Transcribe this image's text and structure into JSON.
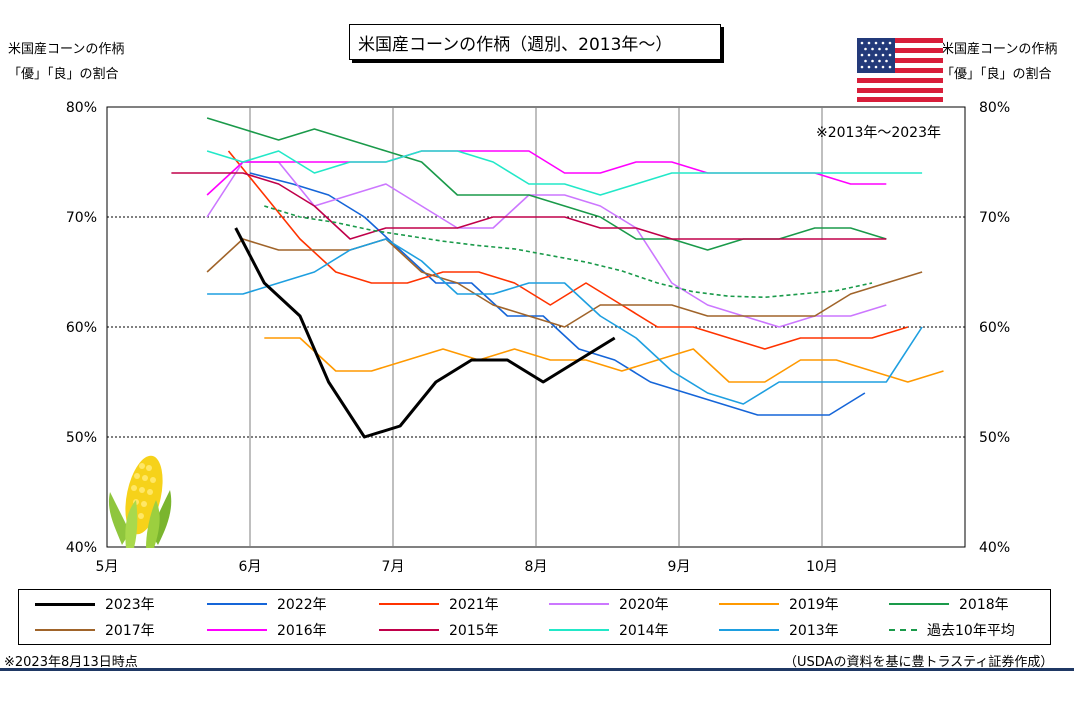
{
  "header": {
    "title": "米国産コーンの作柄（週別、2013年～）",
    "left_axis_label": [
      "米国産コーンの作柄",
      "「優」「良」の割合"
    ],
    "right_axis_label": [
      "米国産コーンの作柄",
      "「優」「良」の割合"
    ],
    "period_note": "※2013年～2023年"
  },
  "footer": {
    "date_note": "※2023年8月13日時点",
    "source": "（USDAの資料を基に豊トラスティ証券作成）"
  },
  "icons": [
    "us-flag-icon",
    "corn-icon"
  ],
  "chart_data": {
    "type": "line",
    "x_unit": "week (month boundaries)",
    "x_ticks": [
      "5月",
      "6月",
      "7月",
      "8月",
      "9月",
      "10月"
    ],
    "y_ticks": [
      "40%",
      "50%",
      "60%",
      "70%",
      "80%"
    ],
    "ylim": [
      40,
      80
    ],
    "grid": "horizontal dotted at 50/60/70, vertical at month boundaries",
    "series": [
      {
        "name": "2023年",
        "color": "#000000",
        "width": 3,
        "dash": "",
        "x": [
          5.9,
          6.1,
          6.35,
          6.55,
          6.8,
          7.05,
          7.3,
          7.55,
          7.8,
          8.05,
          8.3,
          8.55
        ],
        "values": [
          69,
          64,
          61,
          55,
          50,
          51,
          55,
          57,
          57,
          55,
          57,
          59
        ]
      },
      {
        "name": "2022年",
        "color": "#1565d8",
        "width": 1.6,
        "dash": "",
        "x": [
          6.0,
          6.3,
          6.55,
          6.8,
          7.05,
          7.3,
          7.55,
          7.8,
          8.05,
          8.3,
          8.55,
          8.8,
          9.05,
          9.3,
          9.55,
          9.8,
          10.05,
          10.3
        ],
        "values": [
          74,
          73,
          72,
          70,
          67,
          64,
          64,
          61,
          61,
          58,
          57,
          55,
          54,
          53,
          52,
          52,
          52,
          54
        ]
      },
      {
        "name": "2021年",
        "color": "#ff3300",
        "width": 1.6,
        "dash": "",
        "x": [
          5.85,
          6.1,
          6.35,
          6.6,
          6.85,
          7.1,
          7.35,
          7.6,
          7.85,
          8.1,
          8.35,
          8.6,
          8.85,
          9.1,
          9.35,
          9.6,
          9.85,
          10.1,
          10.35,
          10.6
        ],
        "values": [
          76,
          72,
          68,
          65,
          64,
          64,
          65,
          65,
          64,
          62,
          64,
          62,
          60,
          60,
          59,
          58,
          59,
          59,
          59,
          60
        ]
      },
      {
        "name": "2020年",
        "color": "#cc77ff",
        "width": 1.6,
        "dash": "",
        "x": [
          5.7,
          5.95,
          6.2,
          6.45,
          6.7,
          6.95,
          7.2,
          7.45,
          7.7,
          7.95,
          8.2,
          8.45,
          8.7,
          8.95,
          9.2,
          9.45,
          9.7,
          9.95,
          10.2,
          10.45
        ],
        "values": [
          70,
          75,
          75,
          71,
          72,
          73,
          71,
          69,
          69,
          72,
          72,
          71,
          69,
          64,
          62,
          61,
          60,
          61,
          61,
          62
        ]
      },
      {
        "name": "2019年",
        "color": "#ff9900",
        "width": 1.6,
        "dash": "",
        "x": [
          6.1,
          6.35,
          6.6,
          6.85,
          7.1,
          7.35,
          7.6,
          7.85,
          8.1,
          8.35,
          8.6,
          8.85,
          9.1,
          9.35,
          9.6,
          9.85,
          10.1,
          10.35,
          10.6,
          10.85
        ],
        "values": [
          59,
          59,
          56,
          56,
          57,
          58,
          57,
          58,
          57,
          57,
          56,
          57,
          58,
          55,
          55,
          57,
          57,
          56,
          55,
          56
        ]
      },
      {
        "name": "2018年",
        "color": "#1a9a4a",
        "width": 1.6,
        "dash": "",
        "x": [
          5.7,
          5.95,
          6.2,
          6.45,
          6.7,
          6.95,
          7.2,
          7.45,
          7.7,
          7.95,
          8.2,
          8.45,
          8.7,
          8.95,
          9.2,
          9.45,
          9.7,
          9.95,
          10.2,
          10.45
        ],
        "values": [
          79,
          78,
          77,
          78,
          77,
          76,
          75,
          72,
          72,
          72,
          71,
          70,
          68,
          68,
          67,
          68,
          68,
          69,
          69,
          68
        ]
      },
      {
        "name": "2017年",
        "color": "#a0642a",
        "width": 1.6,
        "dash": "",
        "x": [
          5.7,
          5.95,
          6.2,
          6.45,
          6.7,
          6.95,
          7.2,
          7.45,
          7.7,
          7.95,
          8.2,
          8.45,
          8.7,
          8.95,
          9.2,
          9.45,
          9.7,
          9.95,
          10.2,
          10.45,
          10.7
        ],
        "values": [
          65,
          68,
          67,
          67,
          67,
          68,
          65,
          64,
          62,
          61,
          60,
          62,
          62,
          62,
          61,
          61,
          61,
          61,
          63,
          64,
          65
        ]
      },
      {
        "name": "2016年",
        "color": "#ff00ff",
        "width": 1.6,
        "dash": "",
        "x": [
          5.7,
          5.95,
          6.2,
          6.45,
          6.7,
          6.95,
          7.2,
          7.45,
          7.7,
          7.95,
          8.2,
          8.45,
          8.7,
          8.95,
          9.2,
          9.45,
          9.7,
          9.95,
          10.2,
          10.45
        ],
        "values": [
          72,
          75,
          75,
          75,
          75,
          75,
          76,
          76,
          76,
          76,
          74,
          74,
          75,
          75,
          74,
          74,
          74,
          74,
          73,
          73
        ]
      },
      {
        "name": "2015年",
        "color": "#c0004a",
        "width": 1.6,
        "dash": "",
        "x": [
          5.45,
          5.7,
          5.95,
          6.2,
          6.45,
          6.7,
          6.95,
          7.2,
          7.45,
          7.7,
          7.95,
          8.2,
          8.45,
          8.7,
          8.95,
          9.2,
          9.45,
          9.7,
          9.95,
          10.2,
          10.45
        ],
        "values": [
          74,
          74,
          74,
          73,
          71,
          68,
          69,
          69,
          69,
          70,
          70,
          70,
          69,
          69,
          68,
          68,
          68,
          68,
          68,
          68,
          68
        ]
      },
      {
        "name": "2014年",
        "color": "#22e8c8",
        "width": 1.6,
        "dash": "",
        "x": [
          5.7,
          5.95,
          6.2,
          6.45,
          6.7,
          6.95,
          7.2,
          7.45,
          7.7,
          7.95,
          8.2,
          8.45,
          8.7,
          8.95,
          9.2,
          9.45,
          9.7,
          9.95,
          10.2,
          10.45,
          10.7
        ],
        "values": [
          76,
          75,
          76,
          74,
          75,
          75,
          76,
          76,
          75,
          73,
          73,
          72,
          73,
          74,
          74,
          74,
          74,
          74,
          74,
          74,
          74
        ]
      },
      {
        "name": "2013年",
        "color": "#1e9fe0",
        "width": 1.6,
        "dash": "",
        "x": [
          5.7,
          5.95,
          6.2,
          6.45,
          6.7,
          6.95,
          7.2,
          7.45,
          7.7,
          7.95,
          8.2,
          8.45,
          8.7,
          8.95,
          9.2,
          9.45,
          9.7,
          9.95,
          10.2,
          10.45,
          10.7
        ],
        "values": [
          63,
          63,
          64,
          65,
          67,
          68,
          66,
          63,
          63,
          64,
          64,
          61,
          59,
          56,
          54,
          53,
          55,
          55,
          55,
          55,
          60
        ]
      },
      {
        "name": "過去10年平均",
        "color": "#1a9a4a",
        "width": 1.6,
        "dash": "4,3",
        "x": [
          6.1,
          6.35,
          6.6,
          6.85,
          7.1,
          7.35,
          7.6,
          7.85,
          8.1,
          8.35,
          8.6,
          8.85,
          9.1,
          9.35,
          9.6,
          9.85,
          10.1,
          10.35
        ],
        "values": [
          71,
          70,
          69.5,
          68.8,
          68.3,
          67.8,
          67.4,
          67.1,
          66.5,
          65.9,
          65.1,
          64,
          63.2,
          62.8,
          62.7,
          63,
          63.3,
          64
        ]
      }
    ]
  }
}
